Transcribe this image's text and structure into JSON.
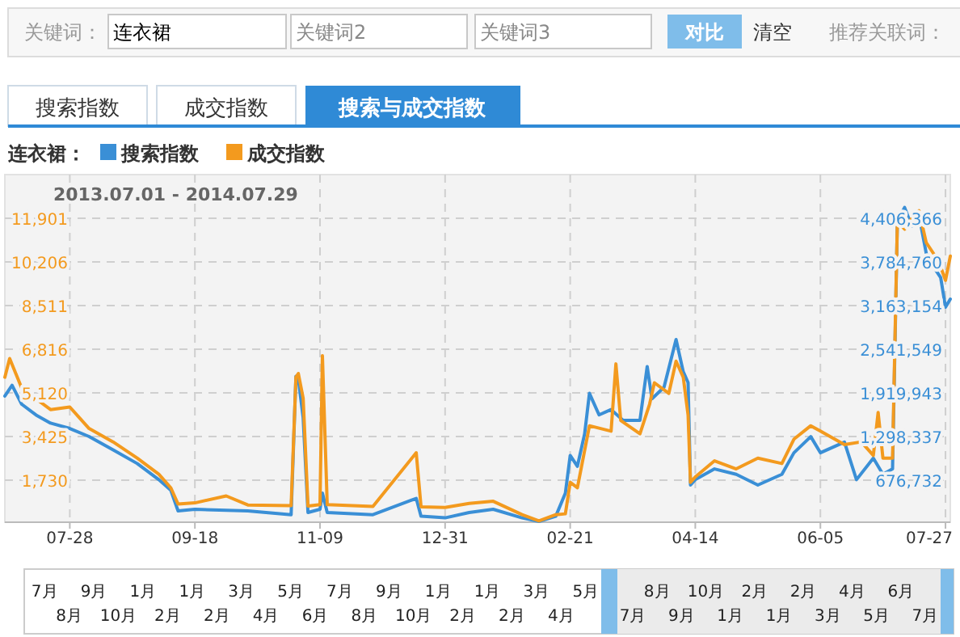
{
  "chart_data": {
    "type": "line",
    "title": "连衣裙：",
    "subtitle": "2013.07.01 - 2014.07.29",
    "annotations": [
      "关键词：",
      "连衣裙",
      "关键词2",
      "关键词3",
      "对比",
      "清空",
      "推荐关联词：",
      "搜索指数",
      "成交指数",
      "搜索与成交指数",
      "7月",
      "8月",
      "9月",
      "10月",
      "1月",
      "2月",
      "1月",
      "2月",
      "3月",
      "4月",
      "5月",
      "6月",
      "7月",
      "8月",
      "9月",
      "10月",
      "1月",
      "2月",
      "1月",
      "2月",
      "3月",
      "4月",
      "5月",
      "7月",
      "8月",
      "9月",
      "10月",
      "1月",
      "2月",
      "1月",
      "2月",
      "3月",
      "4月",
      "5月",
      "6月",
      "7月"
    ],
    "xlim": [
      "2013-07-01",
      "2014-07-29"
    ],
    "xticks": [
      {
        "value": "2013-07-28",
        "label": "07-28"
      },
      {
        "value": "2013-09-18",
        "label": "09-18"
      },
      {
        "value": "2013-11-09",
        "label": "11-09"
      },
      {
        "value": "2013-12-31",
        "label": "12-31"
      },
      {
        "value": "2014-02-21",
        "label": "02-21"
      },
      {
        "value": "2014-04-14",
        "label": "04-14"
      },
      {
        "value": "2014-06-05",
        "label": "06-05"
      },
      {
        "value": "2014-07-27",
        "label": "07-27"
      }
    ],
    "ylim": [
      100,
      13600
    ],
    "yticks": [
      {
        "value": 1730,
        "label": "1,730"
      },
      {
        "value": 3425,
        "label": "3,425"
      },
      {
        "value": 5120,
        "label": "5,120"
      },
      {
        "value": 6816,
        "label": "6,816"
      },
      {
        "value": 8511,
        "label": "8,511"
      },
      {
        "value": 10206,
        "label": "10,206"
      },
      {
        "value": 11901,
        "label": "11,901"
      }
    ],
    "y2lim": [
      78150,
      5027890
    ],
    "y2ticks": [
      {
        "value": 676732,
        "label": "676,732"
      },
      {
        "value": 1298337,
        "label": "1,298,337"
      },
      {
        "value": 1919943,
        "label": "1,919,943"
      },
      {
        "value": 2541549,
        "label": "2,541,549"
      },
      {
        "value": 3163154,
        "label": "3,163,154"
      },
      {
        "value": 3784760,
        "label": "3,784,760"
      },
      {
        "value": 4406366,
        "label": "4,406,366"
      }
    ],
    "grid": true,
    "legend": "top left",
    "series": [
      {
        "name": "搜索指数",
        "color": "#3a8fd6",
        "axis": "y2",
        "x": [
          "2013-07-01",
          "2013-07-04",
          "2013-07-08",
          "2013-07-14",
          "2013-07-20",
          "2013-07-28",
          "2013-08-05",
          "2013-08-15",
          "2013-08-25",
          "2013-09-03",
          "2013-09-08",
          "2013-09-11",
          "2013-09-18",
          "2013-10-10",
          "2013-10-28",
          "2013-10-30",
          "2013-10-31",
          "2013-11-02",
          "2013-11-04",
          "2013-11-09",
          "2013-11-10",
          "2013-11-12",
          "2013-12-01",
          "2013-12-19",
          "2013-12-21",
          "2013-12-31",
          "2014-01-10",
          "2014-01-20",
          "2014-02-01",
          "2014-02-08",
          "2014-02-15",
          "2014-02-19",
          "2014-02-21",
          "2014-02-24",
          "2014-02-27",
          "2014-03-01",
          "2014-03-05",
          "2014-03-10",
          "2014-03-15",
          "2014-03-22",
          "2014-03-25",
          "2014-03-27",
          "2014-04-01",
          "2014-04-06",
          "2014-04-09",
          "2014-04-11",
          "2014-04-12",
          "2014-04-14",
          "2014-04-22",
          "2014-05-01",
          "2014-05-10",
          "2014-05-20",
          "2014-05-25",
          "2014-06-01",
          "2014-06-05",
          "2014-06-15",
          "2014-06-20",
          "2014-06-27",
          "2014-07-01",
          "2014-07-05",
          "2014-07-07",
          "2014-07-10",
          "2014-07-13",
          "2014-07-16",
          "2014-07-19",
          "2014-07-22",
          "2014-07-25",
          "2014-07-27",
          "2014-07-29"
        ],
        "values": [
          1874000,
          2028000,
          1759000,
          1604000,
          1489000,
          1413000,
          1298000,
          1107000,
          914000,
          684000,
          532000,
          239000,
          262000,
          239000,
          186000,
          2157000,
          2118000,
          1565000,
          216000,
          262000,
          492000,
          216000,
          186000,
          417000,
          163000,
          140000,
          216000,
          262000,
          140000,
          90000,
          163000,
          492000,
          1029000,
          875000,
          1337000,
          1913000,
          1606000,
          1682000,
          1529000,
          1529000,
          2295000,
          1836000,
          2000000,
          2680000,
          2220000,
          2067000,
          608000,
          684000,
          837000,
          760000,
          608000,
          760000,
          1067000,
          1297000,
          1067000,
          1220000,
          684000,
          990000,
          760000,
          837000,
          4367000,
          4560000,
          4291000,
          4445000,
          3906000,
          3716000,
          3561000,
          3140000,
          3255000
        ]
      },
      {
        "name": "成交指数",
        "color": "#f39a1e",
        "x": [
          "2013-07-01",
          "2013-07-03",
          "2013-07-08",
          "2013-07-14",
          "2013-07-20",
          "2013-07-28",
          "2013-08-05",
          "2013-08-15",
          "2013-08-25",
          "2013-09-03",
          "2013-09-08",
          "2013-09-11",
          "2013-09-18",
          "2013-10-01",
          "2013-10-10",
          "2013-10-28",
          "2013-10-30",
          "2013-10-31",
          "2013-11-02",
          "2013-11-04",
          "2013-11-09",
          "2013-11-10",
          "2013-11-12",
          "2013-12-01",
          "2013-12-19",
          "2013-12-21",
          "2013-12-31",
          "2014-01-10",
          "2014-01-20",
          "2014-02-01",
          "2014-02-08",
          "2014-02-15",
          "2014-02-19",
          "2014-02-21",
          "2014-02-24",
          "2014-03-01",
          "2014-03-10",
          "2014-03-12",
          "2014-03-14",
          "2014-03-22",
          "2014-03-26",
          "2014-03-28",
          "2014-04-03",
          "2014-04-06",
          "2014-04-09",
          "2014-04-11",
          "2014-04-12",
          "2014-04-14",
          "2014-04-22",
          "2014-05-01",
          "2014-05-10",
          "2014-05-20",
          "2014-05-25",
          "2014-06-01",
          "2014-06-05",
          "2014-06-15",
          "2014-06-22",
          "2014-06-27",
          "2014-06-29",
          "2014-07-01",
          "2014-07-05",
          "2014-07-07",
          "2014-07-10",
          "2014-07-13",
          "2014-07-16",
          "2014-07-19",
          "2014-07-22",
          "2014-07-25",
          "2014-07-27",
          "2014-07-29"
        ],
        "values": [
          5730,
          6457,
          5308,
          4888,
          4473,
          4574,
          3739,
          3218,
          2590,
          1962,
          1435,
          807,
          851,
          1121,
          770,
          743,
          5730,
          5876,
          4917,
          730,
          780,
          6564,
          780,
          710,
          2797,
          700,
          675,
          830,
          914,
          393,
          150,
          393,
          426,
          1648,
          1440,
          3846,
          3637,
          6250,
          4055,
          3533,
          4683,
          5516,
          5102,
          6357,
          5730,
          4260,
          1648,
          1857,
          2484,
          2170,
          2588,
          2379,
          3324,
          3846,
          3637,
          3115,
          3220,
          2693,
          4365,
          2588,
          2588,
          11793,
          11480,
          11898,
          12200,
          10957,
          10539,
          10017,
          9494,
          10435
        ]
      }
    ]
  }
}
